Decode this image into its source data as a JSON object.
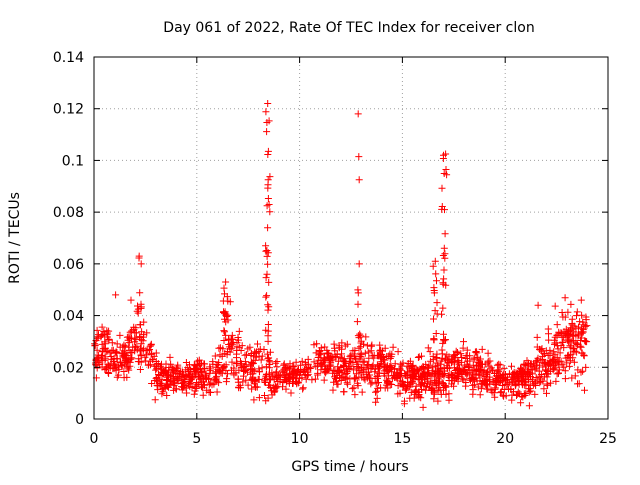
{
  "chart_data": {
    "type": "scatter",
    "title": "Day 061 of 2022, Rate Of TEC Index for receiver clon",
    "xlabel": "GPS time / hours",
    "ylabel": "ROTI / TECUs",
    "xlim": [
      0,
      25
    ],
    "ylim": [
      0,
      0.14
    ],
    "x_ticks": [
      0,
      5,
      10,
      15,
      20,
      25
    ],
    "x_tick_labels": [
      "0",
      "5",
      "10",
      "15",
      "20",
      "25"
    ],
    "y_ticks": [
      0,
      0.02,
      0.04,
      0.06,
      0.08,
      0.1,
      0.12,
      0.14
    ],
    "y_tick_labels": [
      "0",
      "0.02",
      "0.04",
      "0.06",
      "0.08",
      "0.1",
      "0.12",
      "0.14"
    ],
    "grid": true,
    "marker": "+",
    "marker_color": "#ff0000",
    "background_trend": {
      "hours": [
        0,
        0.5,
        1,
        1.5,
        2,
        2.5,
        3,
        4,
        5,
        6,
        6.5,
        7,
        7.5,
        8,
        8.5,
        9,
        10,
        11,
        12,
        13,
        14,
        15,
        16,
        17,
        18,
        19,
        20,
        21,
        22,
        23,
        24
      ],
      "center": [
        0.025,
        0.027,
        0.025,
        0.023,
        0.027,
        0.028,
        0.017,
        0.016,
        0.016,
        0.017,
        0.025,
        0.022,
        0.019,
        0.021,
        0.017,
        0.016,
        0.017,
        0.021,
        0.021,
        0.021,
        0.02,
        0.016,
        0.016,
        0.019,
        0.02,
        0.017,
        0.014,
        0.016,
        0.021,
        0.029,
        0.03
      ],
      "spread": [
        0.008,
        0.008,
        0.007,
        0.007,
        0.01,
        0.011,
        0.006,
        0.005,
        0.005,
        0.006,
        0.013,
        0.01,
        0.008,
        0.009,
        0.007,
        0.005,
        0.006,
        0.007,
        0.008,
        0.009,
        0.008,
        0.006,
        0.007,
        0.008,
        0.008,
        0.006,
        0.005,
        0.006,
        0.01,
        0.012,
        0.012
      ],
      "density_per_hour": 75
    },
    "spikes": [
      {
        "x": 2.2,
        "y_min": 0.03,
        "y_max": 0.063,
        "count": 12
      },
      {
        "x": 6.4,
        "y_min": 0.03,
        "y_max": 0.053,
        "count": 14
      },
      {
        "x": 8.45,
        "y_min": 0.03,
        "y_max": 0.122,
        "count": 34
      },
      {
        "x": 12.9,
        "y_min": 0.03,
        "y_max": 0.06,
        "count": 8
      },
      {
        "x": 16.6,
        "y_min": 0.03,
        "y_max": 0.061,
        "count": 14
      },
      {
        "x": 17.0,
        "y_min": 0.03,
        "y_max": 0.102,
        "count": 22
      }
    ],
    "outlier_points": [
      {
        "x": 12.85,
        "y": 0.118
      },
      {
        "x": 12.88,
        "y": 0.1015
      },
      {
        "x": 12.9,
        "y": 0.0925
      },
      {
        "x": 17.1,
        "y": 0.1025
      },
      {
        "x": 17.12,
        "y": 0.0965
      },
      {
        "x": 17.15,
        "y": 0.0945
      },
      {
        "x": 17.05,
        "y": 0.081
      },
      {
        "x": 1.05,
        "y": 0.048
      },
      {
        "x": 1.8,
        "y": 0.046
      },
      {
        "x": 21.6,
        "y": 0.044
      },
      {
        "x": 23.7,
        "y": 0.046
      }
    ]
  }
}
